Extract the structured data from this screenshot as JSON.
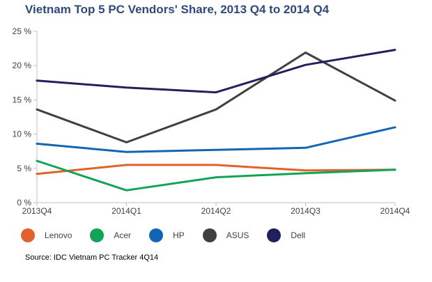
{
  "title": "Vietnam Top 5 PC Vendors' Share, 2013 Q4 to 2014 Q4",
  "source": "Source: IDC Vietnam PC Tracker 4Q14",
  "chart_data": {
    "type": "line",
    "title": "Vietnam Top 5 PC Vendors' Share, 2013 Q4 to 2014 Q4",
    "xlabel": "",
    "ylabel": "",
    "x": [
      "2013Q4",
      "2014Q1",
      "2014Q2",
      "2014Q3",
      "2014Q4"
    ],
    "yticks": [
      "0 %",
      "5 %",
      "10 %",
      "15 %",
      "20 %",
      "25 %"
    ],
    "ylim": [
      0,
      25
    ],
    "grid": false,
    "legend_position": "bottom",
    "series": [
      {
        "name": "Lenovo",
        "color": "#e0622a",
        "values": [
          4.2,
          5.5,
          5.5,
          4.7,
          4.8
        ]
      },
      {
        "name": "Acer",
        "color": "#12a456",
        "values": [
          6.1,
          1.8,
          3.7,
          4.3,
          4.8
        ]
      },
      {
        "name": "HP",
        "color": "#1265b2",
        "values": [
          8.6,
          7.4,
          7.7,
          8.0,
          11.0
        ]
      },
      {
        "name": "ASUS",
        "color": "#404040",
        "values": [
          13.6,
          8.8,
          13.6,
          21.9,
          14.9
        ]
      },
      {
        "name": "Dell",
        "color": "#21205f",
        "values": [
          17.8,
          16.8,
          16.1,
          20.1,
          22.3
        ]
      }
    ]
  }
}
